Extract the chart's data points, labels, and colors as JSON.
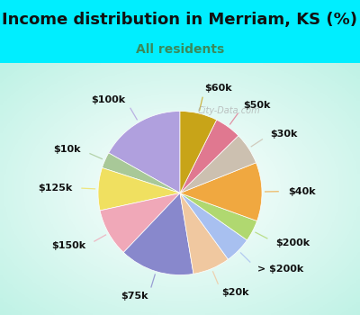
{
  "title": "Income distribution in Merriam, KS (%)",
  "subtitle": "All residents",
  "title_color": "#111111",
  "subtitle_color": "#3a8a5c",
  "background_cyan": "#00eeff",
  "watermark": "City-Data.com",
  "labels": [
    "$100k",
    "$10k",
    "$125k",
    "$150k",
    "$75k",
    "$20k",
    "> $200k",
    "$200k",
    "$40k",
    "$30k",
    "$50k",
    "$60k"
  ],
  "values": [
    16,
    3,
    8,
    9,
    14,
    7,
    5,
    4,
    11,
    6,
    5,
    7
  ],
  "colors": [
    "#b0a0de",
    "#a8c898",
    "#f0e060",
    "#f0a8b8",
    "#8888cc",
    "#f0c8a0",
    "#a8c0f0",
    "#b0d870",
    "#f0a840",
    "#ccc0b0",
    "#e07890",
    "#c8a418"
  ],
  "label_fontsize": 8,
  "startangle": 90,
  "title_fontsize": 13,
  "subtitle_fontsize": 10
}
